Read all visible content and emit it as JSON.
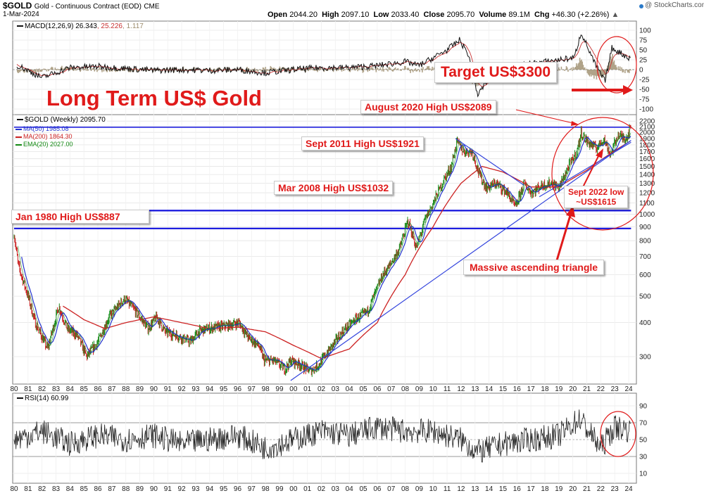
{
  "header": {
    "symbol": "$GOLD",
    "name": "Gold - Continuous Contract (EOD)",
    "exchange": "CME",
    "date": "1-Mar-2024",
    "watermark": "@ StockCharts.com",
    "open_label": "Open",
    "open": "2044.20",
    "high_label": "High",
    "high": "2097.10",
    "low_label": "Low",
    "low": "2033.40",
    "close_label": "Close",
    "close": "2095.70",
    "volume_label": "Volume",
    "volume": "89.1M",
    "chg_label": "Chg",
    "chg": "+46.30 (+2.26%)"
  },
  "macd_panel": {
    "legend": "MACD(12,26,9)",
    "value1": "26.343",
    "value2": "25.226",
    "value3": "1.117",
    "ticks": [
      "100",
      "75",
      "50",
      "25",
      "0",
      "-25",
      "-50",
      "-75",
      "-100"
    ]
  },
  "price_panel": {
    "legend": "$GOLD (Weekly) 2095.70",
    "ma50": "MA(50) 1985.08",
    "ma200": "MA(200) 1864.30",
    "ema20": "EMA(20) 2027.00",
    "ticks": [
      "2200",
      "2100",
      "2000",
      "1900",
      "1800",
      "1700",
      "1600",
      "1500",
      "1400",
      "1300",
      "1200",
      "1100",
      "1000",
      "900",
      "800",
      "700",
      "600",
      "500",
      "400",
      "300"
    ]
  },
  "rsi_panel": {
    "legend": "RSI(14) 60.99",
    "ticks": [
      "90",
      "70",
      "50",
      "30",
      "10"
    ]
  },
  "x_axis": {
    "labels": [
      "80",
      "81",
      "82",
      "83",
      "84",
      "85",
      "86",
      "87",
      "88",
      "89",
      "90",
      "91",
      "92",
      "93",
      "94",
      "95",
      "96",
      "97",
      "98",
      "99",
      "00",
      "01",
      "02",
      "03",
      "04",
      "05",
      "06",
      "07",
      "08",
      "09",
      "10",
      "11",
      "12",
      "13",
      "14",
      "15",
      "16",
      "17",
      "18",
      "19",
      "20",
      "21",
      "22",
      "23",
      "24"
    ]
  },
  "annotations": {
    "main_title": "Long Term US$ Gold",
    "target": "Target US$3300",
    "aug2020": "August 2020 High US$2089",
    "sept2011": "Sept 2011 High US$1921",
    "mar2008": "Mar 2008 High US$1032",
    "jan1980": "Jan 1980 High US$887",
    "sept2022_line1": "Sept 2022 low",
    "sept2022_line2": "~US$1615",
    "triangle": "Massive ascending triangle"
  },
  "colors": {
    "annotation_red": "#e01a1a",
    "ma50_blue": "#2233cc",
    "ma200_red": "#cc2222",
    "ema20_green": "#118811",
    "hline_blue": "#1010dd",
    "macd_hist": "#9c8c6c",
    "candle_up": "#1a8a1a",
    "candle_down": "#c81e1e"
  },
  "chart_data": {
    "type": "line",
    "title": "Gold - Continuous Contract (EOD)",
    "scale": "log",
    "x_unit": "year",
    "xlim": [
      1980,
      2024.2
    ],
    "ylim": [
      250,
      2300
    ],
    "series": [
      {
        "name": "$GOLD (Weekly)",
        "x": [
          1980,
          1980.3,
          1981,
          1981.5,
          1982.4,
          1983.2,
          1983.8,
          1984.5,
          1985.2,
          1986,
          1986.8,
          1987.9,
          1988.7,
          1989.6,
          1990.2,
          1990.8,
          1991.6,
          1992.6,
          1993.2,
          1993.8,
          1994.5,
          1995.3,
          1996.1,
          1996.8,
          1997.5,
          1997.9,
          1998.6,
          1999.4,
          1999.8,
          2000.5,
          2001.2,
          2001.8,
          2002.6,
          2003.5,
          2004.4,
          2005.3,
          2006.4,
          2006.9,
          2007.6,
          2008.2,
          2008.8,
          2009.4,
          2010,
          2010.8,
          2011.3,
          2011.7,
          2012.2,
          2012.8,
          2013.3,
          2013.8,
          2014.5,
          2015.3,
          2015.9,
          2016.5,
          2017,
          2017.8,
          2018.5,
          2019,
          2019.7,
          2020.3,
          2020.6,
          2021,
          2021.7,
          2022.2,
          2022.7,
          2023.2,
          2023.8,
          2024.17
        ],
        "y": [
          850,
          650,
          500,
          400,
          320,
          460,
          380,
          360,
          300,
          340,
          420,
          490,
          440,
          380,
          420,
          370,
          360,
          340,
          370,
          380,
          385,
          390,
          400,
          350,
          330,
          290,
          290,
          270,
          290,
          280,
          265,
          280,
          320,
          370,
          410,
          440,
          600,
          650,
          750,
          950,
          750,
          950,
          1100,
          1350,
          1500,
          1850,
          1700,
          1700,
          1400,
          1250,
          1300,
          1200,
          1060,
          1300,
          1200,
          1280,
          1300,
          1250,
          1500,
          1700,
          2000,
          1850,
          1750,
          1900,
          1650,
          1950,
          1900,
          2096
        ]
      },
      {
        "name": "MA(200)",
        "x": [
          1983.5,
          1985,
          1986.5,
          1988,
          1990,
          1992,
          1994,
          1996,
          1998,
          2000,
          2002,
          2004,
          2006,
          2008,
          2010,
          2012,
          2013.5,
          2015,
          2017,
          2019,
          2021,
          2024.17
        ],
        "y": [
          460,
          410,
          380,
          400,
          420,
          400,
          380,
          385,
          370,
          330,
          295,
          320,
          400,
          600,
          900,
          1300,
          1500,
          1430,
          1260,
          1260,
          1450,
          1864.3
        ]
      },
      {
        "name": "Uptrend support",
        "x": [
          1999.8,
          2024.17
        ],
        "y": [
          245,
          1870
        ]
      },
      {
        "name": "Downtrend line",
        "x": [
          2011.6,
          2016.5
        ],
        "y": [
          1900,
          1280
        ]
      },
      {
        "name": "Jan 1980 High",
        "x": [
          1980,
          2024.17
        ],
        "y": [
          887,
          887
        ]
      },
      {
        "name": "Mar 2008 High",
        "x": [
          1980,
          2024.17
        ],
        "y": [
          1032,
          1032
        ]
      },
      {
        "name": "August 2020 High",
        "x": [
          1980,
          2024.17
        ],
        "y": [
          2089,
          2089
        ]
      }
    ],
    "macd": {
      "ylim": [
        -100,
        112
      ],
      "x": [
        1980,
        1982,
        1984,
        1986,
        1988,
        1990,
        1992,
        1994,
        1996,
        1998,
        2000,
        2002,
        2004,
        2006,
        2008,
        2009,
        2010,
        2011,
        2011.9,
        2012.5,
        2013.2,
        2014,
        2016,
        2017,
        2019,
        2020.1,
        2020.6,
        2021.5,
        2022.3,
        2022.8,
        2023.3,
        2024.17
      ],
      "y": [
        15,
        -20,
        5,
        8,
        3,
        -2,
        0,
        -2,
        0,
        -8,
        0,
        5,
        5,
        10,
        20,
        10,
        30,
        50,
        75,
        40,
        -65,
        -20,
        10,
        15,
        25,
        30,
        95,
        20,
        -30,
        55,
        45,
        26.343
      ]
    },
    "rsi": {
      "ylim": [
        0,
        100
      ],
      "x": [
        1980,
        1982,
        1984,
        1986,
        1988,
        1990,
        1992,
        1994,
        1996,
        1998,
        2000,
        2002,
        2004,
        2006,
        2008,
        2010,
        2012,
        2013.2,
        2015,
        2017,
        2019,
        2020.5,
        2022,
        2023,
        2024.17
      ],
      "y": [
        50,
        60,
        45,
        55,
        50,
        55,
        45,
        50,
        55,
        40,
        50,
        60,
        55,
        65,
        60,
        60,
        50,
        35,
        45,
        50,
        55,
        75,
        40,
        65,
        60.99
      ]
    }
  }
}
